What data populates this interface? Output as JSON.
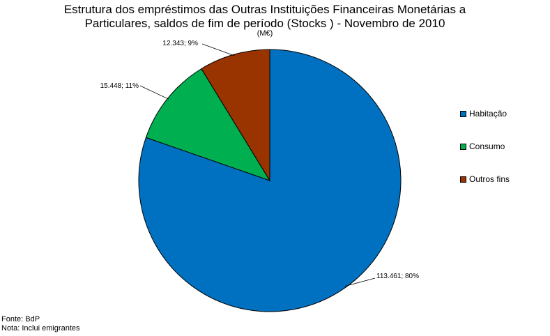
{
  "chart_data": {
    "type": "pie",
    "title_lines": [
      "Estrutura dos empréstimos das Outras Instituições Financeiras Monetárias a",
      "Particulares, saldos de fim de período (Stocks ) - Novembro de 2010"
    ],
    "subtitle": "(M€)",
    "slices": [
      {
        "name": "Habitação",
        "value": 113461,
        "label": "113.461; 80%",
        "color": "#0070c0"
      },
      {
        "name": "Consumo",
        "value": 15448,
        "label": "15.448; 11%",
        "color": "#00b050"
      },
      {
        "name": "Outros fins",
        "value": 12343,
        "label": "12.343; 9%",
        "color": "#993300"
      }
    ],
    "legend_position": "right"
  },
  "footer": {
    "source": "Fonte: BdP",
    "note": "Nota: Inclui emigrantes"
  }
}
